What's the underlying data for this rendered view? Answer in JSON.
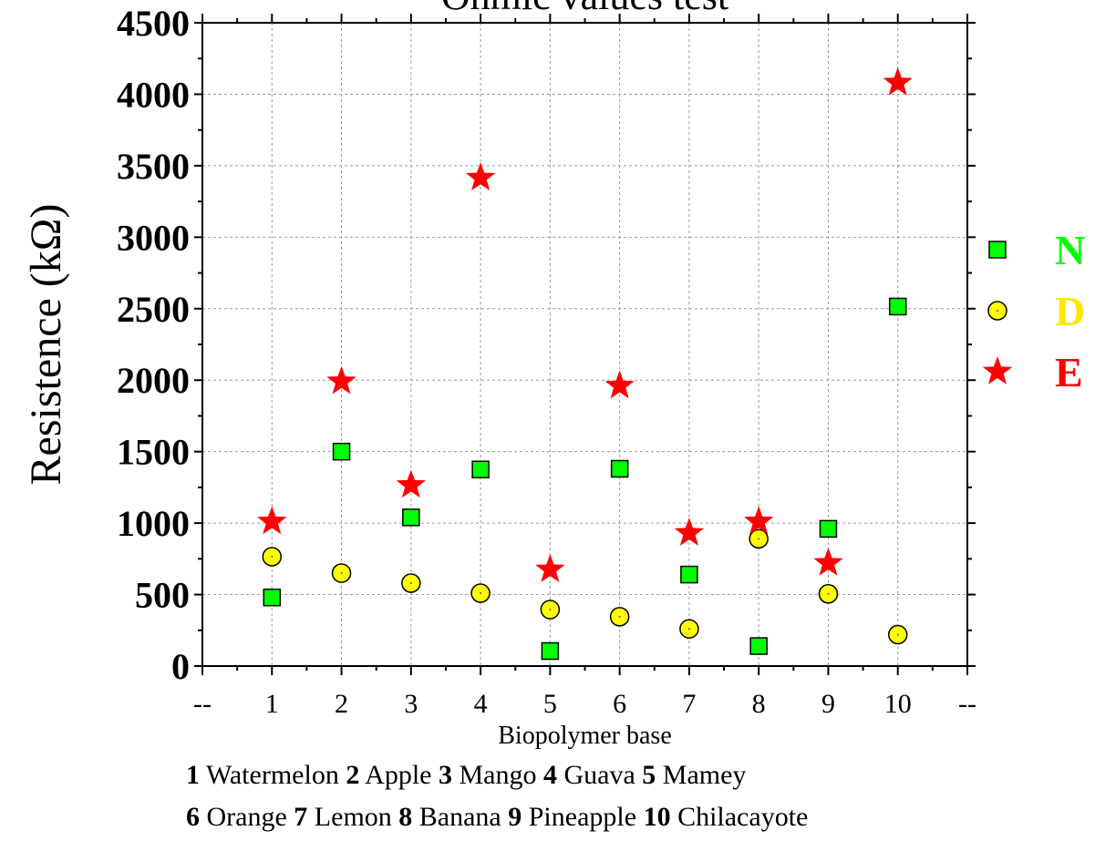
{
  "chart_data": {
    "type": "scatter",
    "title": "Ohmic values test",
    "xlabel": "Biopolymer base",
    "ylabel": "Resistence (kΩ)",
    "x_ticks": [
      "--",
      "1",
      "2",
      "3",
      "4",
      "5",
      "6",
      "7",
      "8",
      "9",
      "10",
      "--"
    ],
    "xlim": [
      0,
      11
    ],
    "ylim": [
      0,
      4500
    ],
    "y_ticks": [
      0,
      500,
      1000,
      1500,
      2000,
      2500,
      3000,
      3500,
      4000,
      4500
    ],
    "grid": true,
    "legend_position": "right",
    "series": [
      {
        "name": "N",
        "marker": "square",
        "color": "#00ff00",
        "legend_color": "#00ff00",
        "x": [
          1,
          2,
          3,
          4,
          5,
          6,
          7,
          8,
          9,
          10
        ],
        "y": [
          480,
          1500,
          1040,
          1375,
          105,
          1380,
          640,
          140,
          960,
          2515
        ]
      },
      {
        "name": "D",
        "marker": "circle",
        "color": "#ffff00",
        "legend_color": "#ffe600",
        "x": [
          1,
          2,
          3,
          4,
          5,
          6,
          7,
          8,
          9,
          10
        ],
        "y": [
          765,
          650,
          580,
          510,
          395,
          345,
          260,
          890,
          505,
          220
        ]
      },
      {
        "name": "E",
        "marker": "star",
        "color": "#ff0000",
        "legend_color": "#ff0000",
        "x": [
          1,
          2,
          3,
          4,
          5,
          6,
          7,
          8,
          9,
          10
        ],
        "y": [
          1010,
          1990,
          1265,
          3415,
          675,
          1960,
          930,
          1010,
          720,
          4080
        ]
      }
    ],
    "caption": {
      "line1": [
        {
          "num": "1",
          "name": "Watermelon"
        },
        {
          "num": "2",
          "name": "Apple"
        },
        {
          "num": "3",
          "name": "Mango"
        },
        {
          "num": "4",
          "name": "Guava"
        },
        {
          "num": "5",
          "name": "Mamey"
        }
      ],
      "line2": [
        {
          "num": "6",
          "name": "Orange"
        },
        {
          "num": "7",
          "name": "Lemon"
        },
        {
          "num": "8",
          "name": "Banana"
        },
        {
          "num": "9",
          "name": "Pineapple"
        },
        {
          "num": "10",
          "name": "Chilacayote"
        }
      ]
    }
  }
}
